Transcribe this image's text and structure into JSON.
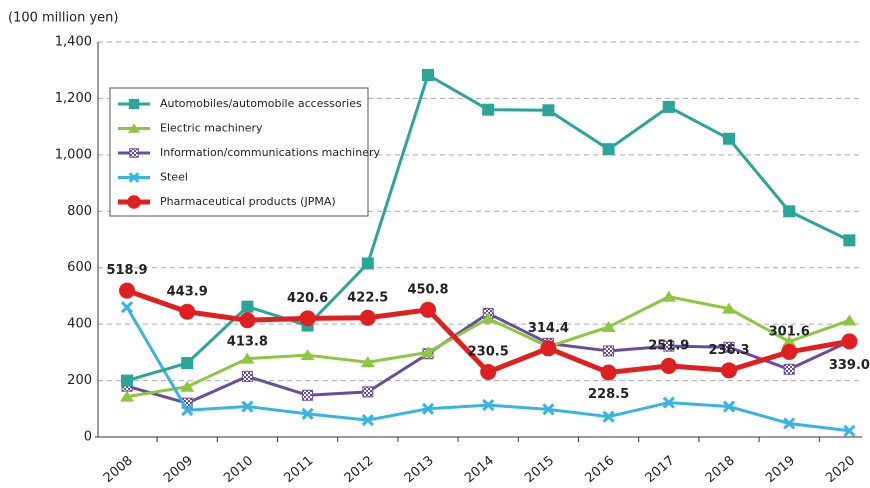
{
  "chart_data": {
    "type": "line",
    "y_axis_label": "(100 million yen)",
    "categories": [
      "2008",
      "2009",
      "2010",
      "2011",
      "2012",
      "2013",
      "2014",
      "2015",
      "2016",
      "2017",
      "2018",
      "2019",
      "2020"
    ],
    "ylim": [
      0,
      1400
    ],
    "yticks": [
      0,
      200,
      400,
      600,
      800,
      {
        "value": 1000,
        "label": "1,000"
      },
      {
        "value": 1200,
        "label": "1,200"
      },
      {
        "value": 1400,
        "label": "1,400"
      }
    ],
    "grid": true,
    "legend": "upper left",
    "series": [
      {
        "name": "Automobiles/automobile accessories",
        "color": "#2aa59a",
        "marker": "square",
        "values": [
          200,
          262,
          462,
          395,
          615,
          1283,
          1160,
          1158,
          1020,
          1170,
          1057,
          800,
          697
        ]
      },
      {
        "name": "Electric machinery",
        "color": "#8dc63f",
        "marker": "triangle",
        "values": [
          143,
          178,
          278,
          290,
          265,
          300,
          420,
          320,
          390,
          497,
          455,
          338,
          413
        ]
      },
      {
        "name": "Information/communications machinery",
        "color": "#6a4c9c",
        "marker": "checker",
        "values": [
          180,
          120,
          215,
          148,
          160,
          295,
          438,
          332,
          305,
          322,
          318,
          240,
          339
        ]
      },
      {
        "name": "Steel",
        "color": "#38b4e2",
        "marker": "x",
        "values": [
          460,
          95,
          108,
          82,
          60,
          100,
          113,
          98,
          72,
          122,
          108,
          48,
          22
        ]
      },
      {
        "name": "Pharmaceutical products (JPMA)",
        "color": "#e02020",
        "marker": "circle",
        "values": [
          518.9,
          443.9,
          413.8,
          420.6,
          422.5,
          450.8,
          230.5,
          314.4,
          228.5,
          251.9,
          236.3,
          301.6,
          339.0
        ],
        "value_labels": [
          "518.9",
          "443.9",
          "413.8",
          "420.6",
          "422.5",
          "450.8",
          "230.5",
          "314.4",
          "228.5",
          "251.9",
          "236.3",
          "301.6",
          "339.0"
        ]
      }
    ]
  }
}
